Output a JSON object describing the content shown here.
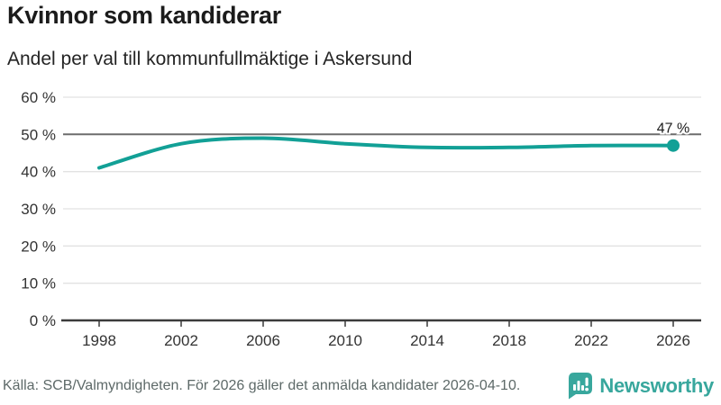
{
  "title": "Kvinnor som kandiderar",
  "subtitle": "Andel per val till kommunfullmäktige i Askersund",
  "footer": {
    "source_text": "Källa: SCB/Valmyndigheten. För 2026 gäller det anmälda kandidater 2026-04-10.",
    "brand_name": "Newsworthy"
  },
  "colors": {
    "line": "#12a096",
    "brand": "#38a79d",
    "grid": "#e2e2e2",
    "reference_line": "#6d6d6d",
    "axis": "#3b3b3b",
    "tick_text": "#333333",
    "label_text": "#1d1d1d",
    "muted_text": "#5d6968"
  },
  "chart_data": {
    "type": "line",
    "title": "Kvinnor som kandiderar",
    "subtitle": "Andel per val till kommunfullmäktige i Askersund",
    "x": [
      1998,
      2002,
      2006,
      2010,
      2014,
      2018,
      2022,
      2026
    ],
    "values": [
      41,
      47.5,
      49,
      47.5,
      46.5,
      46.5,
      47,
      47
    ],
    "end_label": "47 %",
    "unit": "%",
    "ylim": [
      0,
      60
    ],
    "yticks": [
      0,
      10,
      20,
      30,
      40,
      50,
      60
    ],
    "ytick_suffix": " %",
    "reference_line": 50,
    "grid": true,
    "legend": false,
    "xlabel": "",
    "ylabel": ""
  }
}
